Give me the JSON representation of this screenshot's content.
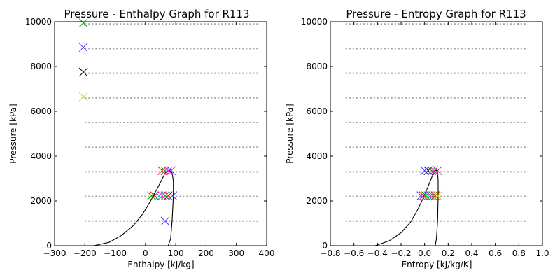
{
  "chart_data": [
    {
      "type": "scatter",
      "title": "Pressure - Enthalpy Graph for R113",
      "xlabel": "Enthalpy [kJ/kg]",
      "ylabel": "Pressure [kPa]",
      "xlim": [
        -300,
        400
      ],
      "ylim": [
        0,
        10000
      ],
      "xticks": [
        -300,
        -200,
        -100,
        0,
        100,
        200,
        300,
        400
      ],
      "yticks": [
        0,
        2000,
        4000,
        6000,
        8000,
        10000
      ],
      "xtick_labels": [
        "−300",
        "−200",
        "−100",
        "0",
        "100",
        "200",
        "300",
        "400"
      ],
      "ytick_labels": [
        "0",
        "2000",
        "4000",
        "6000",
        "8000",
        "10000"
      ],
      "isobars": {
        "pressures": [
          1100,
          2200,
          3300,
          4400,
          5500,
          6600,
          7700,
          8800,
          9900
        ],
        "x_range": [
          -200,
          375
        ]
      },
      "saturation_dome": {
        "x": [
          -170,
          -120,
          -80,
          -40,
          -10,
          15,
          35,
          52,
          65,
          78,
          88,
          92,
          92,
          88,
          83,
          75
        ],
        "y": [
          0,
          150,
          450,
          900,
          1400,
          1950,
          2450,
          2900,
          3250,
          3380,
          3250,
          2900,
          2200,
          1100,
          300,
          0
        ]
      },
      "markers": [
        {
          "x": -205,
          "y": 9950,
          "color": "#00aa00"
        },
        {
          "x": -205,
          "y": 8850,
          "color": "#3333ff"
        },
        {
          "x": -205,
          "y": 7750,
          "color": "#000000"
        },
        {
          "x": -205,
          "y": 6650,
          "color": "#cccc00"
        },
        {
          "x": 55,
          "y": 3350,
          "color": "#ff0000"
        },
        {
          "x": 65,
          "y": 3350,
          "color": "#00aa00"
        },
        {
          "x": 75,
          "y": 3350,
          "color": "#ff00ff"
        },
        {
          "x": 85,
          "y": 3350,
          "color": "#3333ff"
        },
        {
          "x": 20,
          "y": 2230,
          "color": "#00aa00"
        },
        {
          "x": 30,
          "y": 2230,
          "color": "#ff0000"
        },
        {
          "x": 45,
          "y": 2230,
          "color": "#00cccc"
        },
        {
          "x": 55,
          "y": 2230,
          "color": "#ff00ff"
        },
        {
          "x": 65,
          "y": 2230,
          "color": "#00aa00"
        },
        {
          "x": 75,
          "y": 2230,
          "color": "#ff0000"
        },
        {
          "x": 90,
          "y": 2230,
          "color": "#3333ff"
        },
        {
          "x": 65,
          "y": 1100,
          "color": "#3333ff"
        }
      ]
    },
    {
      "type": "scatter",
      "title": "Pressure - Entropy Graph for R113",
      "xlabel": "Entropy [kJ/kg/K]",
      "ylabel": "Pressure [kPa]",
      "xlim": [
        -0.8,
        1.0
      ],
      "ylim": [
        0,
        10000
      ],
      "xticks": [
        -0.8,
        -0.6,
        -0.4,
        -0.2,
        0.0,
        0.2,
        0.4,
        0.6,
        0.8,
        1.0
      ],
      "yticks": [
        0,
        2000,
        4000,
        6000,
        8000,
        10000
      ],
      "xtick_labels": [
        "−0.8",
        "−0.6",
        "−0.4",
        "−0.2",
        "0.0",
        "0.2",
        "0.4",
        "0.6",
        "0.8",
        "1.0"
      ],
      "ytick_labels": [
        "0",
        "2000",
        "4000",
        "6000",
        "8000",
        "10000"
      ],
      "isobars": {
        "pressures": [
          1100,
          2200,
          3300,
          4400,
          5500,
          6600,
          7700,
          8800,
          9900
        ],
        "x_range": [
          -0.67,
          0.88
        ]
      },
      "saturation_dome": {
        "x": [
          -0.42,
          -0.3,
          -0.2,
          -0.12,
          -0.06,
          -0.01,
          0.03,
          0.06,
          0.08,
          0.1,
          0.11,
          0.115,
          0.115,
          0.11,
          0.1,
          0.09
        ],
        "y": [
          0,
          220,
          580,
          1050,
          1600,
          2150,
          2650,
          3050,
          3300,
          3380,
          3250,
          2900,
          2200,
          1100,
          300,
          0
        ]
      },
      "markers": [
        {
          "x": 0.0,
          "y": 3350,
          "color": "#3333ff"
        },
        {
          "x": 0.03,
          "y": 3350,
          "color": "#000000"
        },
        {
          "x": 0.06,
          "y": 3350,
          "color": "#00aa00"
        },
        {
          "x": 0.08,
          "y": 3350,
          "color": "#ff00ff"
        },
        {
          "x": 0.11,
          "y": 3350,
          "color": "#ff0000"
        },
        {
          "x": -0.03,
          "y": 2230,
          "color": "#3333ff"
        },
        {
          "x": -0.01,
          "y": 2230,
          "color": "#ff0000"
        },
        {
          "x": 0.01,
          "y": 2230,
          "color": "#00aa00"
        },
        {
          "x": 0.03,
          "y": 2230,
          "color": "#00cccc"
        },
        {
          "x": 0.05,
          "y": 2230,
          "color": "#ff00ff"
        },
        {
          "x": 0.07,
          "y": 2230,
          "color": "#00aa00"
        },
        {
          "x": 0.09,
          "y": 2230,
          "color": "#ff0000"
        },
        {
          "x": 0.11,
          "y": 2230,
          "color": "#cccc00"
        }
      ]
    }
  ]
}
